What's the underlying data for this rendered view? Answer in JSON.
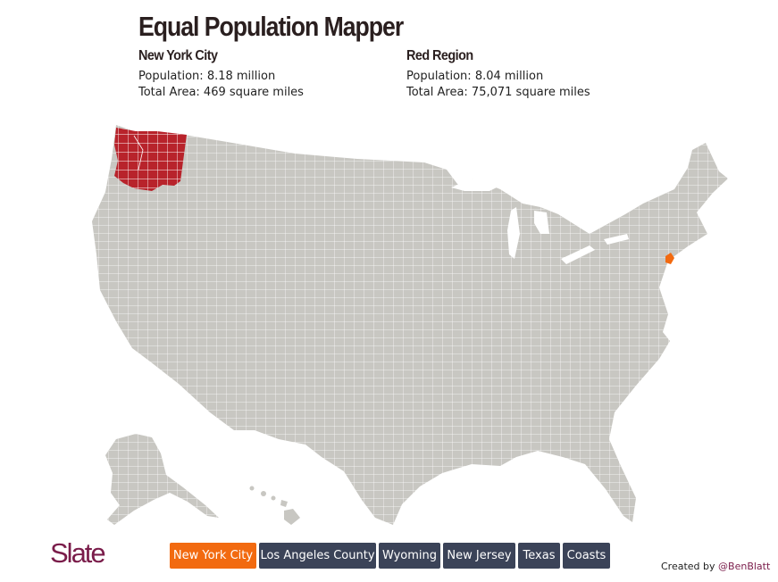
{
  "title": "Equal Population Mapper",
  "left_panel": {
    "heading": "New York City",
    "population": "Population: 8.18 million",
    "area": "Total Area: 469 square miles"
  },
  "right_panel": {
    "heading": "Red Region",
    "population": "Population: 8.04 million",
    "area": "Total Area: 75,071 square miles"
  },
  "map": {
    "base_color": "#c8c7c2",
    "border_color": "#ffffff",
    "region_color": "#b8232b",
    "city_color": "#f26a10"
  },
  "logo": "Slate",
  "buttons": [
    {
      "label": "New York City",
      "active": true
    },
    {
      "label": "Los Angeles County",
      "active": false
    },
    {
      "label": "Wyoming",
      "active": false
    },
    {
      "label": "New Jersey",
      "active": false
    },
    {
      "label": "Texas",
      "active": false
    },
    {
      "label": "Coasts",
      "active": false
    }
  ],
  "credit": {
    "prefix": "Created by",
    "handle": "@BenBlatt"
  }
}
